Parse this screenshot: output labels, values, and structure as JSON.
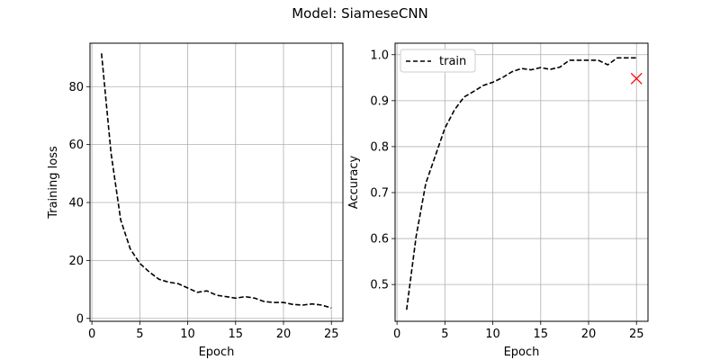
{
  "figure": {
    "title": "Model: SiameseCNN"
  },
  "chart_data": [
    {
      "type": "line",
      "xlabel": "Epoch",
      "ylabel": "Training loss",
      "xlim": [
        -0.2,
        26.2
      ],
      "ylim": [
        -1,
        95
      ],
      "xticks": [
        0,
        5,
        10,
        15,
        20,
        25
      ],
      "yticks": [
        0,
        20,
        40,
        60,
        80
      ],
      "grid": true,
      "series": [
        {
          "name": "",
          "style": "dashed",
          "color": "#000000",
          "x": [
            1,
            2,
            3,
            4,
            5,
            6,
            7,
            8,
            9,
            10,
            11,
            12,
            13,
            14,
            15,
            16,
            17,
            18,
            19,
            20,
            21,
            22,
            23,
            24,
            25
          ],
          "values": [
            91.5,
            57,
            34,
            24,
            19,
            16,
            13.5,
            12.5,
            12,
            10.5,
            9,
            9.5,
            8,
            7.5,
            7,
            7.5,
            7,
            5.8,
            5.5,
            5.5,
            4.8,
            4.6,
            5,
            4.6,
            3.6
          ]
        }
      ]
    },
    {
      "type": "line",
      "xlabel": "Epoch",
      "ylabel": "Accuracy",
      "xlim": [
        -0.2,
        26.2
      ],
      "ylim": [
        0.42,
        1.025
      ],
      "xticks": [
        0,
        5,
        10,
        15,
        20,
        25
      ],
      "yticks": [
        0.5,
        0.6,
        0.7,
        0.8,
        0.9,
        1.0
      ],
      "ytick_labels": [
        "0.5",
        "0.6",
        "0.7",
        "0.8",
        "0.9",
        "1.0"
      ],
      "grid": true,
      "legend": {
        "placement": "top-left",
        "entries": [
          "train"
        ]
      },
      "series": [
        {
          "name": "train",
          "style": "dashed",
          "color": "#000000",
          "x": [
            1,
            2,
            3,
            4,
            5,
            6,
            7,
            8,
            9,
            10,
            11,
            12,
            13,
            14,
            15,
            16,
            17,
            18,
            19,
            20,
            21,
            22,
            23,
            24,
            25
          ],
          "values": [
            0.445,
            0.605,
            0.72,
            0.78,
            0.84,
            0.88,
            0.908,
            0.92,
            0.933,
            0.94,
            0.95,
            0.963,
            0.97,
            0.967,
            0.972,
            0.968,
            0.973,
            0.988,
            0.988,
            0.988,
            0.988,
            0.978,
            0.993,
            0.993,
            0.993
          ]
        }
      ],
      "markers": [
        {
          "name": "marker",
          "shape": "x",
          "color": "#ff0000",
          "x": 25,
          "y": 0.948
        }
      ]
    }
  ]
}
